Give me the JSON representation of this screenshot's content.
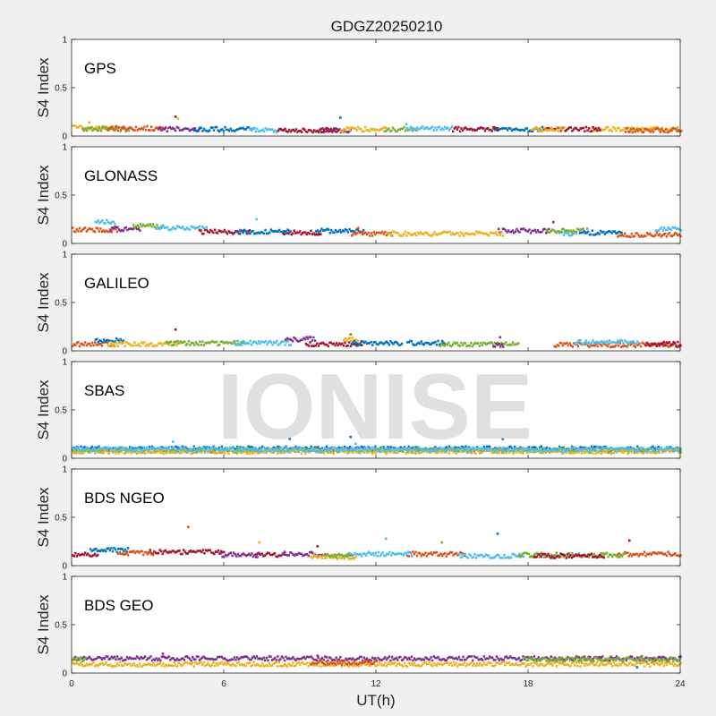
{
  "chart_data": {
    "type": "scatter",
    "title": "GDGZ20250210",
    "watermark": "IONISE",
    "xlabel": "UT(h)",
    "xlim": [
      0,
      24
    ],
    "xticks": [
      "0",
      "6",
      "12",
      "18",
      "24"
    ],
    "ylabel": "S4 Index",
    "ylim": [
      0,
      1
    ],
    "yticks": [
      "0",
      "0.5",
      "1"
    ],
    "colors": [
      "#0072BD",
      "#D95319",
      "#EDB120",
      "#7E2F8E",
      "#77AC30",
      "#4DBEEE",
      "#A2142F"
    ],
    "panels": [
      {
        "label": "GPS",
        "series": [
          {
            "color": "#EDB120",
            "segments": [
              [
                0.0,
                1.4,
                0.09
              ],
              [
                20.5,
                24.0,
                0.07
              ]
            ]
          },
          {
            "color": "#77AC30",
            "segments": [
              [
                0.4,
                2.3,
                0.07
              ],
              [
                12.3,
                13.6,
                0.07
              ]
            ]
          },
          {
            "color": "#D95319",
            "segments": [
              [
                1.4,
                3.7,
                0.08
              ],
              [
                21.8,
                24.0,
                0.06
              ]
            ]
          },
          {
            "color": "#7E2F8E",
            "segments": [
              [
                3.4,
                5.0,
                0.07
              ],
              [
                9.7,
                11.0,
                0.06
              ]
            ]
          },
          {
            "color": "#0072BD",
            "segments": [
              [
                4.8,
                7.2,
                0.07
              ],
              [
                16.6,
                18.6,
                0.07
              ]
            ]
          },
          {
            "color": "#4DBEEE",
            "segments": [
              [
                7.0,
                8.4,
                0.06
              ],
              [
                13.2,
                15.0,
                0.08
              ]
            ]
          },
          {
            "color": "#A2142F",
            "segments": [
              [
                8.1,
                10.5,
                0.06
              ],
              [
                15.0,
                16.8,
                0.07
              ],
              [
                18.6,
                20.8,
                0.07
              ]
            ]
          },
          {
            "color": "#EDB120",
            "segments": [
              [
                10.6,
                12.4,
                0.07
              ],
              [
                18.1,
                19.4,
                0.07
              ]
            ]
          }
        ],
        "spikes": [
          [
            4.1,
            0.2,
            "#A2142F"
          ],
          [
            4.2,
            0.18,
            "#EDB120"
          ],
          [
            10.6,
            0.19,
            "#0072BD"
          ],
          [
            0.7,
            0.14,
            "#EDB120"
          ],
          [
            13.2,
            0.12,
            "#4DBEEE"
          ]
        ]
      },
      {
        "label": "GLONASS",
        "series": [
          {
            "color": "#D95319",
            "segments": [
              [
                0.0,
                1.8,
                0.14
              ]
            ]
          },
          {
            "color": "#4DBEEE",
            "segments": [
              [
                0.9,
                1.7,
                0.22
              ],
              [
                19.2,
                19.9,
                0.1
              ],
              [
                23.0,
                24.0,
                0.15
              ]
            ]
          },
          {
            "color": "#7E2F8E",
            "segments": [
              [
                1.5,
                2.7,
                0.15
              ],
              [
                16.8,
                18.8,
                0.13
              ]
            ]
          },
          {
            "color": "#77AC30",
            "segments": [
              [
                2.4,
                3.6,
                0.18
              ],
              [
                18.7,
                20.3,
                0.13
              ]
            ]
          },
          {
            "color": "#4DBEEE",
            "segments": [
              [
                3.3,
                5.3,
                0.16
              ]
            ]
          },
          {
            "color": "#A2142F",
            "segments": [
              [
                5.0,
                7.0,
                0.12
              ],
              [
                8.3,
                9.8,
                0.11
              ]
            ]
          },
          {
            "color": "#0072BD",
            "segments": [
              [
                6.5,
                8.6,
                0.12
              ],
              [
                9.6,
                11.5,
                0.13
              ],
              [
                20.0,
                21.7,
                0.11
              ]
            ]
          },
          {
            "color": "#D95319",
            "segments": [
              [
                11.0,
                12.6,
                0.1
              ],
              [
                21.5,
                24.0,
                0.09
              ]
            ]
          },
          {
            "color": "#EDB120",
            "segments": [
              [
                12.4,
                17.0,
                0.1
              ]
            ]
          }
        ],
        "spikes": [
          [
            7.3,
            0.25,
            "#4DBEEE"
          ],
          [
            19.0,
            0.22,
            "#7E2F8E"
          ],
          [
            11.3,
            0.16,
            "#D95319"
          ]
        ]
      },
      {
        "label": "GALILEO",
        "series": [
          {
            "color": "#D95319",
            "segments": [
              [
                0.0,
                1.6,
                0.07
              ],
              [
                19.0,
                24.0,
                0.06
              ]
            ]
          },
          {
            "color": "#0072BD",
            "segments": [
              [
                0.9,
                2.0,
                0.11
              ],
              [
                13.2,
                14.7,
                0.08
              ]
            ]
          },
          {
            "color": "#EDB120",
            "segments": [
              [
                1.4,
                4.2,
                0.07
              ],
              [
                10.7,
                11.3,
                0.12
              ]
            ]
          },
          {
            "color": "#77AC30",
            "segments": [
              [
                3.7,
                6.8,
                0.08
              ],
              [
                14.5,
                17.6,
                0.07
              ]
            ]
          },
          {
            "color": "#7E2F8E",
            "segments": [
              [
                8.4,
                9.6,
                0.12
              ],
              [
                16.6,
                17.0,
                0.06
              ]
            ]
          },
          {
            "color": "#4DBEEE",
            "segments": [
              [
                6.4,
                8.6,
                0.08
              ],
              [
                19.8,
                22.3,
                0.09
              ]
            ]
          },
          {
            "color": "#A2142F",
            "segments": [
              [
                9.2,
                11.4,
                0.07
              ],
              [
                22.6,
                24.0,
                0.07
              ]
            ]
          },
          {
            "color": "#0072BD",
            "segments": [
              [
                11.0,
                13.0,
                0.08
              ]
            ]
          }
        ],
        "spikes": [
          [
            4.1,
            0.22,
            "#A2142F"
          ],
          [
            11.0,
            0.17,
            "#D95319"
          ],
          [
            16.9,
            0.14,
            "#7E2F8E"
          ]
        ]
      },
      {
        "label": "SBAS",
        "series": [
          {
            "color": "#0072BD",
            "segments": [
              [
                0.0,
                24.0,
                0.1
              ]
            ]
          },
          {
            "color": "#77AC30",
            "segments": [
              [
                0.0,
                24.0,
                0.08
              ]
            ]
          },
          {
            "color": "#EDB120",
            "segments": [
              [
                0.0,
                24.0,
                0.07
              ]
            ]
          },
          {
            "color": "#4DBEEE",
            "segments": [
              [
                0.0,
                24.0,
                0.09
              ]
            ]
          }
        ],
        "spikes": [
          [
            4.0,
            0.17,
            "#4DBEEE"
          ],
          [
            8.6,
            0.2,
            "#0072BD"
          ],
          [
            11.0,
            0.22,
            "#0072BD"
          ],
          [
            17.0,
            0.2,
            "#0072BD"
          ],
          [
            11.2,
            0.15,
            "#4DBEEE"
          ]
        ]
      },
      {
        "label": "BDS NGEO",
        "series": [
          {
            "color": "#A2142F",
            "segments": [
              [
                0.0,
                1.0,
                0.12
              ],
              [
                3.0,
                6.0,
                0.14
              ],
              [
                7.2,
                8.4,
                0.11
              ]
            ]
          },
          {
            "color": "#0072BD",
            "segments": [
              [
                0.7,
                2.2,
                0.16
              ]
            ]
          },
          {
            "color": "#D95319",
            "segments": [
              [
                1.8,
                3.2,
                0.13
              ],
              [
                13.2,
                15.5,
                0.12
              ],
              [
                21.5,
                24.0,
                0.12
              ]
            ]
          },
          {
            "color": "#7E2F8E",
            "segments": [
              [
                5.8,
                7.4,
                0.11
              ],
              [
                8.2,
                10.0,
                0.12
              ]
            ]
          },
          {
            "color": "#EDB120",
            "segments": [
              [
                9.4,
                11.2,
                0.09
              ]
            ]
          },
          {
            "color": "#4DBEEE",
            "segments": [
              [
                10.8,
                13.4,
                0.12
              ],
              [
                15.2,
                17.8,
                0.1
              ]
            ]
          },
          {
            "color": "#77AC30",
            "segments": [
              [
                10.0,
                11.0,
                0.1
              ],
              [
                17.6,
                21.8,
                0.11
              ]
            ]
          },
          {
            "color": "#A2142F",
            "segments": [
              [
                18.2,
                21.0,
                0.1
              ]
            ]
          }
        ],
        "spikes": [
          [
            4.6,
            0.4,
            "#D95319"
          ],
          [
            7.4,
            0.24,
            "#EDB120"
          ],
          [
            12.4,
            0.28,
            "#4DBEEE"
          ],
          [
            14.6,
            0.24,
            "#77AC30"
          ],
          [
            16.8,
            0.33,
            "#0072BD"
          ],
          [
            22.0,
            0.26,
            "#A2142F"
          ],
          [
            9.7,
            0.2,
            "#A2142F"
          ]
        ]
      },
      {
        "label": "BDS GEO",
        "series": [
          {
            "color": "#7E2F8E",
            "segments": [
              [
                0.0,
                24.0,
                0.15
              ]
            ]
          },
          {
            "color": "#EDB120",
            "segments": [
              [
                0.0,
                24.0,
                0.09
              ]
            ]
          },
          {
            "color": "#77AC30",
            "segments": [
              [
                0.0,
                0.5,
                0.14
              ],
              [
                17.8,
                24.0,
                0.14
              ]
            ]
          },
          {
            "color": "#D95319",
            "segments": [
              [
                9.4,
                12.0,
                0.11
              ]
            ]
          }
        ],
        "spikes": [
          [
            3.6,
            0.2,
            "#7E2F8E"
          ],
          [
            9.7,
            0.18,
            "#7E2F8E"
          ],
          [
            22.3,
            0.06,
            "#0072BD"
          ]
        ]
      }
    ]
  }
}
